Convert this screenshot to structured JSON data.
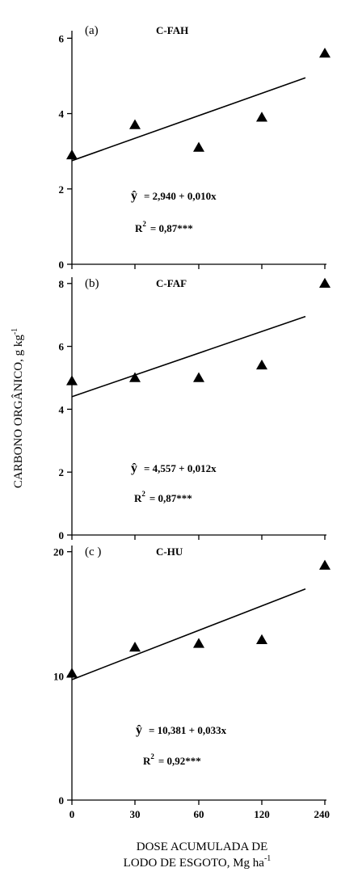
{
  "chart_data": {
    "type": "scatter",
    "y_axis_title": "CARBONO ORGÂNICO, g kg",
    "y_axis_unit_sup": "-1",
    "x_axis_title_line1": "DOSE ACUMULADA DE",
    "x_axis_title_line2": "LODO DE ESGOTO, Mg ha",
    "x_axis_unit_sup": "-1",
    "x_categories": [
      "0",
      "30",
      "60",
      "120",
      "240"
    ],
    "panels": [
      {
        "label": "(a)",
        "title": "C-FAH",
        "yticks": [
          0,
          2,
          4,
          6
        ],
        "ylim": [
          0,
          6.2
        ],
        "values": [
          2.9,
          3.7,
          3.1,
          3.9,
          5.6
        ],
        "fit": [
          2.75,
          4.95
        ],
        "eq_lhs": "ŷ",
        "eq_rhs": "= 2,940 + 0,010x",
        "r2_label": "R",
        "r2_sup": "2",
        "r2_value": "= 0,87***"
      },
      {
        "label": "(b)",
        "title": "C-FAF",
        "yticks": [
          0,
          2,
          4,
          6,
          8
        ],
        "ylim": [
          0,
          8.2
        ],
        "values": [
          4.9,
          5.0,
          5.0,
          5.4,
          8.0
        ],
        "fit": [
          4.4,
          6.95
        ],
        "eq_lhs": "ŷ",
        "eq_rhs": "= 4,557 + 0,012x",
        "r2_label": "R",
        "r2_sup": "2",
        "r2_value": "= 0,87***"
      },
      {
        "label": "(c )",
        "title": "C-HU",
        "yticks": [
          0,
          10,
          20
        ],
        "ylim": [
          0,
          20.5
        ],
        "values": [
          10.2,
          12.3,
          12.6,
          12.9,
          18.9
        ],
        "fit": [
          9.7,
          17.0
        ],
        "eq_lhs": "ŷ",
        "eq_rhs": "= 10,381 + 0,033x",
        "r2_label": "R",
        "r2_sup": "2",
        "r2_value": "= 0,92***"
      }
    ]
  }
}
